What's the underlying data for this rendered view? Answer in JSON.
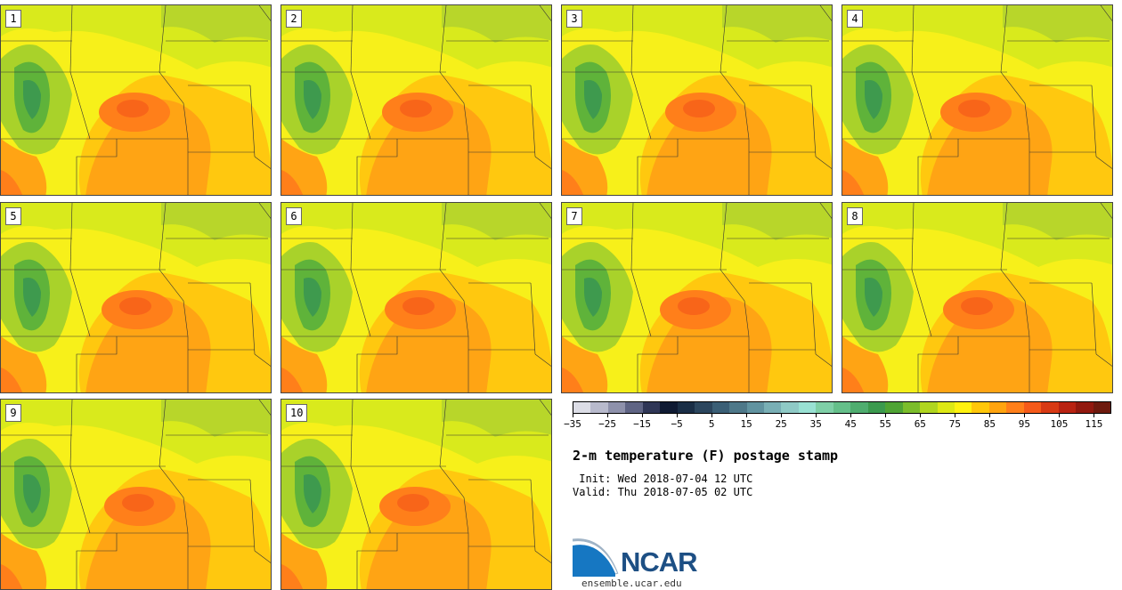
{
  "product": {
    "title": "2-m temperature (F) postage stamp",
    "init": " Init: Wed 2018-07-04 12 UTC",
    "valid": "Valid: Thu 2018-07-05 02 UTC"
  },
  "members": [
    {
      "label": "1"
    },
    {
      "label": "2"
    },
    {
      "label": "3"
    },
    {
      "label": "4"
    },
    {
      "label": "5"
    },
    {
      "label": "6"
    },
    {
      "label": "7"
    },
    {
      "label": "8"
    },
    {
      "label": "9"
    },
    {
      "label": "10"
    }
  ],
  "colorbar": {
    "min": -35,
    "max": 120,
    "step": 5,
    "tick_labels": [
      "−35",
      "−25",
      "−15",
      "−5",
      "5",
      "15",
      "25",
      "35",
      "45",
      "55",
      "65",
      "75",
      "85",
      "95",
      "105",
      "115"
    ],
    "tick_values": [
      -35,
      -25,
      -15,
      -5,
      5,
      15,
      25,
      35,
      45,
      55,
      65,
      75,
      85,
      95,
      105,
      115
    ],
    "colors": [
      "#dcdde6",
      "#b8bacc",
      "#8e91ab",
      "#5f6484",
      "#2f3656",
      "#0f1a33",
      "#1a2e46",
      "#2c465e",
      "#3b5f76",
      "#4e7889",
      "#6193a0",
      "#79afb5",
      "#8fcac6",
      "#99e1d3",
      "#7fcfa7",
      "#65bf8a",
      "#4fad6f",
      "#3b9a4e",
      "#4fa434",
      "#7bbd2b",
      "#b0d51f",
      "#dde815",
      "#fff20f",
      "#ffc70a",
      "#ffa40f",
      "#ff7f1a",
      "#f55a1a",
      "#d83a14",
      "#b92312",
      "#92190f",
      "#6e1a0e"
    ]
  },
  "logo": {
    "name": "NCAR",
    "url_text": "ensemble.ucar.edu"
  }
}
